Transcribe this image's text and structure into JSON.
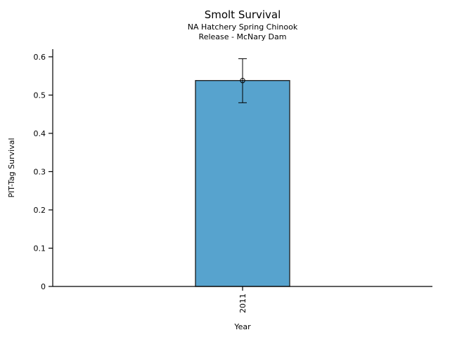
{
  "chart_data": {
    "type": "bar",
    "title": "Smolt Survival",
    "subtitle1": "NA Hatchery Spring Chinook",
    "subtitle2": "Release - McNary Dam",
    "xlabel": "Year",
    "ylabel": "PIT-Tag Survival",
    "categories": [
      "2011"
    ],
    "values": [
      0.538
    ],
    "error_low": [
      0.48
    ],
    "error_high": [
      0.595
    ],
    "marker": "open-circle",
    "yticks": [
      "0",
      "0.1",
      "0.2",
      "0.3",
      "0.4",
      "0.5",
      "0.6"
    ],
    "ytick_values": [
      0,
      0.1,
      0.2,
      0.3,
      0.4,
      0.5,
      0.6
    ],
    "ylim": [
      0,
      0.62
    ],
    "grid": false,
    "legend": false,
    "bar_color": "#57A3CE",
    "bar_edge_color": "#1a1a1a",
    "axis_color": "#000000",
    "error_bar_color": "#000000"
  }
}
